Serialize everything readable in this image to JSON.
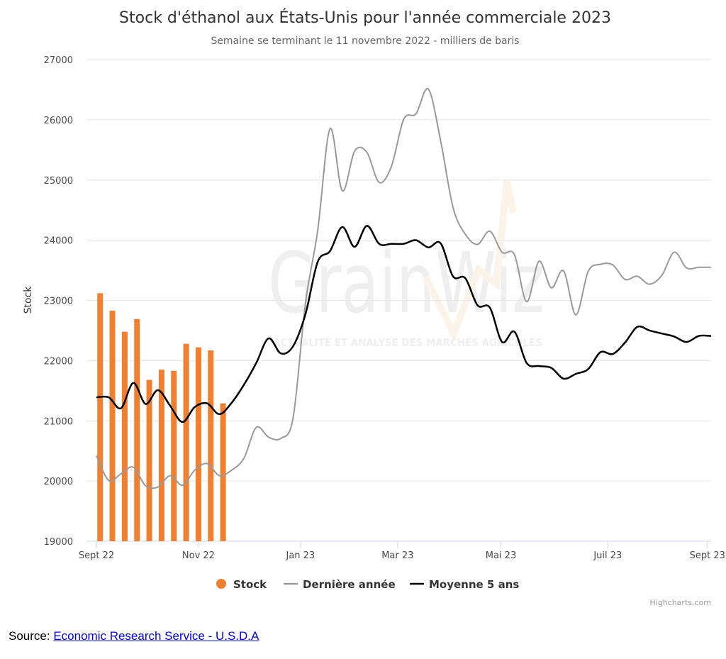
{
  "chart_data": {
    "type": "bar+line",
    "title": "Stock d'éthanol aux États-Unis pour l'année commerciale 2023",
    "subtitle": "Semaine se terminant le 11 novembre 2022 - milliers de baris",
    "ylabel": "Stock",
    "ylim": [
      19000,
      27000
    ],
    "yticks": [
      "19000",
      "20000",
      "21000",
      "22000",
      "23000",
      "24000",
      "25000",
      "26000",
      "27000"
    ],
    "xticks": [
      {
        "label": "Sept 22",
        "week": 0
      },
      {
        "label": "Nov 22",
        "week": 8.3
      },
      {
        "label": "Jan 23",
        "week": 16.6
      },
      {
        "label": "Mar 23",
        "week": 24.5
      },
      {
        "label": "Mai 23",
        "week": 32.9
      },
      {
        "label": "Juil 23",
        "week": 41.6
      },
      {
        "label": "Sept 23",
        "week": 49.7
      }
    ],
    "xlim": [
      0,
      50
    ],
    "grid": true,
    "legend_position": "bottom-center",
    "series": [
      {
        "name": "Stock",
        "kind": "column",
        "color": "#f07f2f",
        "x": [
          0.3,
          1.3,
          2.3,
          3.3,
          4.3,
          5.3,
          6.3,
          7.3,
          8.3,
          9.3,
          10.3
        ],
        "values": [
          23120,
          22830,
          22480,
          22690,
          21680,
          21850,
          21830,
          22280,
          22220,
          22170,
          21290
        ]
      },
      {
        "name": "Dernière année",
        "kind": "line",
        "color": "#999999",
        "x": [
          0,
          1,
          2,
          3,
          4,
          5,
          6,
          7,
          8,
          9,
          10,
          11,
          12,
          13,
          14,
          15,
          16,
          17,
          18,
          19,
          20,
          21,
          22,
          23,
          24,
          25,
          26,
          27,
          28,
          29,
          30,
          31,
          32,
          33,
          34,
          35,
          36,
          37,
          38,
          39,
          40,
          41,
          42,
          43,
          44,
          45,
          46,
          47,
          48,
          49,
          50
        ],
        "values": [
          20420,
          20010,
          20120,
          20230,
          19920,
          19900,
          20090,
          19930,
          20180,
          20290,
          20090,
          20180,
          20380,
          20890,
          20730,
          20710,
          21050,
          22950,
          24160,
          25850,
          24820,
          25480,
          25460,
          24960,
          25230,
          26010,
          26100,
          26510,
          25650,
          24550,
          24100,
          23930,
          24150,
          23800,
          23760,
          22980,
          23650,
          23210,
          23490,
          22760,
          23480,
          23600,
          23590,
          23350,
          23400,
          23270,
          23420,
          23800,
          23540,
          23550,
          23550
        ]
      },
      {
        "name": "Moyenne 5 ans",
        "kind": "line",
        "color": "#000000",
        "x": [
          0,
          1,
          2,
          3,
          4,
          5,
          6,
          7,
          8,
          9,
          10,
          11,
          12,
          13,
          14,
          15,
          16,
          17,
          18,
          19,
          20,
          21,
          22,
          23,
          24,
          25,
          26,
          27,
          28,
          29,
          30,
          31,
          32,
          33,
          34,
          35,
          36,
          37,
          38,
          39,
          40,
          41,
          42,
          43,
          44,
          45,
          46,
          47,
          48,
          49,
          50
        ],
        "values": [
          21390,
          21390,
          21210,
          21630,
          21280,
          21510,
          21250,
          20980,
          21230,
          21290,
          21110,
          21300,
          21600,
          21960,
          22370,
          22120,
          22240,
          22770,
          23640,
          23820,
          24220,
          23890,
          24240,
          23940,
          23940,
          23940,
          24000,
          23880,
          23950,
          23400,
          23370,
          22920,
          22880,
          22310,
          22480,
          21960,
          21910,
          21880,
          21700,
          21780,
          21860,
          22140,
          22110,
          22300,
          22560,
          22500,
          22450,
          22400,
          22310,
          22410,
          22410
        ]
      }
    ]
  },
  "watermark": {
    "brand": "GrainWiz",
    "tagline": "ACTUALITÉ ET ANALYSE DES MARCHÉS AGRICOLES"
  },
  "credits": "Highcharts.com",
  "source": {
    "label": "Source:",
    "link_text": "Economic Research Service - U.S.D.A"
  }
}
